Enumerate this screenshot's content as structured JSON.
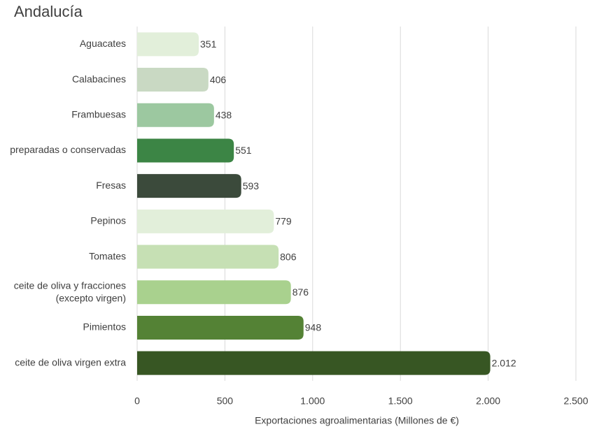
{
  "chart_data": {
    "type": "bar",
    "orientation": "horizontal",
    "title": "Andalucía",
    "x_label": "Exportaciones agroalimentarias (Millones de €)",
    "categories": [
      "Aguacates",
      "Calabacines",
      "Frambuesas",
      "preparadas o conservadas",
      "Fresas",
      "Pepinos",
      "Tomates",
      "ceite de oliva y fracciones\n(excepto virgen)",
      "Pimientos",
      "ceite de oliva virgen extra"
    ],
    "values": [
      351,
      406,
      438,
      551,
      593,
      779,
      806,
      876,
      948,
      2012
    ],
    "value_labels": [
      "351",
      "406",
      "438",
      "551",
      "593",
      "779",
      "806",
      "876",
      "948",
      "2.012"
    ],
    "colors": [
      "#e2efda",
      "#c9d9c3",
      "#9cc8a0",
      "#3c8545",
      "#3b4a3b",
      "#e2efda",
      "#c6e0b4",
      "#a9d18e",
      "#548235",
      "#375623"
    ],
    "xlim": [
      0,
      2500
    ],
    "xticks": [
      0,
      500,
      {
        "value": 1000,
        "label": "1.000"
      },
      {
        "value": 1500,
        "label": "1.500"
      },
      {
        "value": 2000,
        "label": "2.000"
      },
      {
        "value": 2500,
        "label": "2.500"
      }
    ],
    "grid": true
  }
}
